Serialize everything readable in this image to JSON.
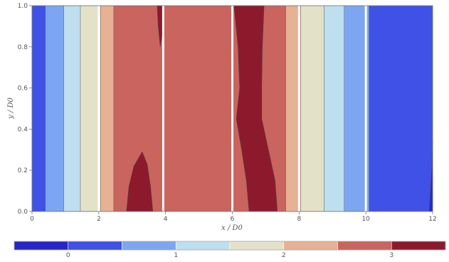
{
  "chart_data": {
    "type": "heatmap",
    "plot_kind": "filled contour",
    "xlabel": "x / D0",
    "ylabel": "y / D0",
    "xlim": [
      0,
      12
    ],
    "ylim": [
      0,
      1
    ],
    "x_ticks": [
      "0",
      "2",
      "4",
      "6",
      "8",
      "10",
      "12"
    ],
    "y_ticks": [
      "0.0",
      "0.2",
      "0.4",
      "0.6",
      "0.8",
      "1.0"
    ],
    "legend": {
      "placement": "bottom",
      "type": "colorbar",
      "min": -0.5,
      "max": 3.5,
      "step": 0.5,
      "tick_values": [
        0,
        1,
        2,
        3
      ],
      "tick_labels": [
        "0",
        "1",
        "2",
        "3"
      ],
      "colors": [
        "#2626c8",
        "#3f51e6",
        "#7da6f2",
        "#bedff0",
        "#e3e2c9",
        "#e7b193",
        "#c9645e",
        "#8c1a2c"
      ]
    },
    "bands": [
      {
        "x_start": 0,
        "x_end": 0.4,
        "level": 1
      },
      {
        "x_start": 0.4,
        "x_end": 0.95,
        "level": 2
      },
      {
        "x_start": 0.95,
        "x_end": 1.45,
        "level": 3
      },
      {
        "x_start": 1.45,
        "x_end": 2.05,
        "level": 4
      },
      {
        "x_start": 2.05,
        "x_end": 2.45,
        "level": 5
      },
      {
        "x_start": 2.45,
        "x_end": 7.6,
        "level": 6
      },
      {
        "x_start": 7.6,
        "x_end": 8.05,
        "level": 5
      },
      {
        "x_start": 8.05,
        "x_end": 8.75,
        "level": 4
      },
      {
        "x_start": 8.75,
        "x_end": 9.35,
        "level": 3
      },
      {
        "x_start": 9.35,
        "x_end": 10.1,
        "level": 2
      },
      {
        "x_start": 10.1,
        "x_end": 12,
        "level": 1
      }
    ],
    "regions": [
      {
        "name": "lower-peak",
        "level": 7,
        "points": [
          [
            2.83,
            0.0
          ],
          [
            2.9,
            0.12
          ],
          [
            3.05,
            0.22
          ],
          [
            3.3,
            0.29
          ],
          [
            3.45,
            0.23
          ],
          [
            3.55,
            0.12
          ],
          [
            3.62,
            0.0
          ]
        ]
      },
      {
        "name": "upper-peak",
        "level": 7,
        "points": [
          [
            3.75,
            1.0
          ],
          [
            3.78,
            0.9
          ],
          [
            3.84,
            0.8
          ],
          [
            3.92,
            0.88
          ],
          [
            3.95,
            1.0
          ]
        ]
      },
      {
        "name": "center-ribbon",
        "level": 7,
        "points": [
          [
            6.05,
            1.0
          ],
          [
            6.17,
            0.8
          ],
          [
            6.22,
            0.6
          ],
          [
            6.12,
            0.45
          ],
          [
            6.28,
            0.3
          ],
          [
            6.42,
            0.15
          ],
          [
            6.5,
            0.0
          ],
          [
            7.35,
            0.0
          ],
          [
            7.28,
            0.15
          ],
          [
            7.08,
            0.3
          ],
          [
            6.88,
            0.45
          ],
          [
            6.88,
            0.6
          ],
          [
            6.9,
            0.8
          ],
          [
            6.95,
            1.0
          ]
        ]
      },
      {
        "name": "right-edge-tongue",
        "level": 0,
        "points": [
          [
            11.9,
            0.0
          ],
          [
            11.98,
            0.22
          ],
          [
            12.0,
            0.35
          ],
          [
            12.0,
            0.0
          ]
        ]
      }
    ],
    "vertical_gaps": [
      2.0,
      3.93,
      6.0,
      8.0,
      10.0
    ]
  }
}
